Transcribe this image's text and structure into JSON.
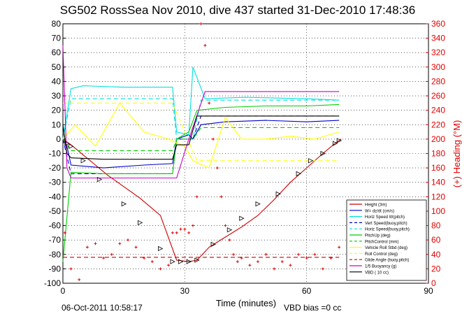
{
  "chart_data": {
    "type": "line",
    "title": "SG502 RossSea Nov 2010, dive 437 started 31-Dec-2010 17:48:36",
    "xlabel": "Time (minutes)",
    "ylabel_right": "(+) Heading (°M)",
    "xlim": [
      0,
      90
    ],
    "ylim_left": [
      -100,
      80
    ],
    "ylim_right": [
      0,
      360
    ],
    "x_ticks": [
      "0",
      "30",
      "60",
      "90"
    ],
    "y_left_ticks": [
      "-100",
      "-90",
      "-80",
      "-70",
      "-60",
      "-50",
      "-40",
      "-30",
      "-20",
      "-10",
      "0",
      "10",
      "20",
      "30",
      "40",
      "50",
      "60",
      "70",
      "80"
    ],
    "y_right_ticks": [
      "0",
      "20",
      "40",
      "60",
      "80",
      "100",
      "120",
      "140",
      "160",
      "180",
      "200",
      "220",
      "240",
      "260",
      "280",
      "300",
      "320",
      "340",
      "360"
    ],
    "grid": true,
    "legend_position": "bottom-right",
    "footer_date": "06-Oct-2011 10:58:17",
    "footer_vbd": "VBD bias =0 cc",
    "colors": {
      "heading": "#e00000",
      "right_axis": "#e00000"
    },
    "series": [
      {
        "name": "Height (3m)",
        "color": "#cc0000",
        "style": "solid-marker",
        "x": [
          0,
          2,
          5,
          8,
          11,
          15,
          19,
          24,
          28,
          31,
          33,
          36,
          40,
          44,
          48,
          52,
          56,
          60,
          64,
          67,
          68.5
        ],
        "y": [
          0,
          -4,
          -11,
          -18,
          -25,
          -33,
          -41,
          -53,
          -84,
          -85,
          -84,
          -75,
          -68,
          -61,
          -53,
          -42,
          -30,
          -20,
          -10,
          -3,
          0
        ]
      },
      {
        "name": "W= dz/dt (cm/s)",
        "color": "#0000cc",
        "style": "solid",
        "x": [
          0,
          1,
          2,
          10,
          20,
          27,
          28,
          31,
          32,
          34,
          40,
          50,
          60,
          68
        ],
        "y": [
          0,
          -5,
          -18,
          -20,
          -18,
          -17,
          0,
          3,
          0,
          10,
          12,
          13,
          12,
          13
        ]
      },
      {
        "name": "Horiz Speed W(pitch)",
        "color": "#00e0e0",
        "style": "solid",
        "x": [
          0,
          2,
          5,
          15,
          25,
          27,
          28,
          31,
          32,
          35,
          45,
          60,
          68
        ],
        "y": [
          0,
          35,
          37,
          36,
          36,
          36,
          5,
          3,
          50,
          28,
          29,
          28,
          27
        ]
      },
      {
        "name": "Vert Speed(buoy,pitch)",
        "color": "#0000cc",
        "style": "dashed",
        "x": [
          0,
          2,
          27,
          28,
          32,
          34,
          68
        ],
        "y": [
          0,
          -24,
          -24,
          0,
          0,
          16,
          16
        ]
      },
      {
        "name": "Horiz Speed(buoy,pitch)",
        "color": "#00e0e0",
        "style": "dashed",
        "x": [
          0,
          2,
          27,
          28,
          32,
          34,
          68
        ],
        "y": [
          0,
          28,
          28,
          0,
          0,
          27,
          27
        ]
      },
      {
        "name": "PitchUp (deg)",
        "color": "#00cc00",
        "style": "solid",
        "x": [
          0,
          2,
          10,
          20,
          27,
          28,
          31,
          33,
          40,
          50,
          60,
          68
        ],
        "y": [
          -85,
          -23,
          -24,
          -24,
          -24,
          0,
          5,
          20,
          22,
          23,
          23,
          24
        ]
      },
      {
        "name": "PitchControl (mm)",
        "color": "#00cc00",
        "style": "dashed",
        "x": [
          0,
          2,
          27,
          28,
          32,
          34,
          68
        ],
        "y": [
          0,
          -8,
          -8,
          0,
          0,
          8,
          8
        ]
      },
      {
        "name": "Vehicle Roll Stbd (deg)",
        "color": "#ffff00",
        "style": "solid",
        "x": [
          0,
          3,
          8,
          14,
          20,
          26,
          30,
          32,
          36,
          40,
          44,
          50,
          56,
          62,
          68
        ],
        "y": [
          0,
          10,
          -5,
          25,
          5,
          0,
          -5,
          -15,
          -20,
          15,
          0,
          0,
          2,
          0,
          5
        ]
      },
      {
        "name": "Roll Control (deg)",
        "color": "#ffff00",
        "style": "dashed",
        "x": [
          0,
          5,
          10,
          20,
          27,
          33,
          40,
          50,
          60,
          68
        ],
        "y": [
          25,
          25,
          25,
          25,
          25,
          -15,
          -15,
          -15,
          -15,
          -15
        ]
      },
      {
        "name": "Glide Angle (buoy,pitch)",
        "color": "#cc0000",
        "style": "dashed",
        "x": [
          0,
          2,
          27,
          28,
          68
        ],
        "y": [
          -82,
          -82,
          -82,
          -82,
          -82
        ]
      },
      {
        "name": "1/5 Buoyancy (g)",
        "color": "#cc00cc",
        "style": "solid",
        "x": [
          0,
          1,
          2,
          20,
          27,
          28,
          31,
          35,
          50,
          68
        ],
        "y": [
          65,
          -20,
          -27,
          -27,
          -27,
          -27,
          0,
          33,
          33,
          33
        ]
      },
      {
        "name": "VBD ( 10 cc)",
        "color": "#000000",
        "style": "solid",
        "x": [
          0,
          1,
          2,
          10,
          27,
          28,
          31,
          33,
          50,
          68
        ],
        "y": [
          10,
          -10,
          -13,
          -14,
          -14,
          -4,
          -4,
          16,
          16,
          16
        ]
      }
    ],
    "heading_points": {
      "name": "Heading (°M)",
      "x": [
        0.5,
        2,
        4,
        6,
        8,
        10,
        12,
        14,
        16,
        18,
        20,
        22,
        24,
        26,
        27,
        28,
        29,
        30,
        31,
        32,
        33,
        34,
        35,
        36,
        37,
        38,
        39,
        40,
        41,
        42,
        43,
        44,
        46,
        48,
        50,
        52,
        54,
        56,
        58,
        60,
        62,
        64,
        66,
        68
      ],
      "y": [
        70,
        20,
        5,
        50,
        55,
        35,
        40,
        55,
        60,
        50,
        35,
        30,
        20,
        25,
        70,
        70,
        75,
        75,
        70,
        80,
        120,
        360,
        330,
        250,
        200,
        160,
        120,
        80,
        60,
        40,
        30,
        35,
        25,
        30,
        40,
        20,
        30,
        25,
        40,
        35,
        40,
        20,
        35,
        50
      ]
    },
    "markers_triangles": {
      "x": [
        1,
        2,
        5,
        9,
        15,
        19,
        24,
        27,
        29,
        31,
        33,
        37,
        41,
        44,
        48,
        53,
        58,
        61,
        64,
        67,
        68
      ],
      "y": [
        -3,
        -5,
        -15,
        -28,
        -45,
        -58,
        -76,
        -85,
        -85,
        -85,
        -84,
        -73,
        -63,
        -55,
        -45,
        -38,
        -24,
        -15,
        -10,
        -3,
        -1
      ]
    }
  }
}
